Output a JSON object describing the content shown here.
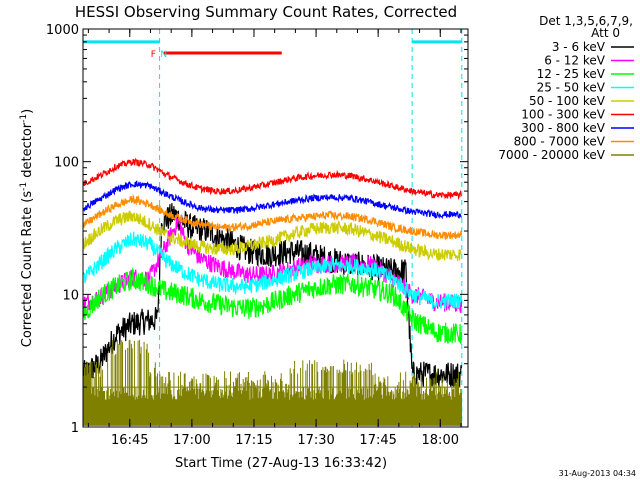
{
  "chart_data": {
    "type": "line",
    "title": "HESSI Observing Summary Count Rates, Corrected",
    "xlabel": "Start Time (27-Aug-13 16:33:42)",
    "ylabel_main": "Corrected Count Rate (s",
    "ylabel_sup1": "-1",
    "ylabel_mid": " detector",
    "ylabel_sup2": "-1",
    "ylabel_end": ")",
    "yscale": "log",
    "ylim": [
      1,
      1000
    ],
    "xlim_minutes": [
      0,
      93
    ],
    "x_ticks": [
      {
        "label": "16:45",
        "minute": 11.3
      },
      {
        "label": "17:00",
        "minute": 26.3
      },
      {
        "label": "17:15",
        "minute": 41.3
      },
      {
        "label": "17:30",
        "minute": 56.3
      },
      {
        "label": "17:45",
        "minute": 71.3
      },
      {
        "label": "18:00",
        "minute": 86.3
      }
    ],
    "y_ticks": [
      {
        "label": "1",
        "value": 1
      },
      {
        "label": "10",
        "value": 10
      },
      {
        "label": "100",
        "value": 100
      },
      {
        "label": "1000",
        "value": 1000
      }
    ],
    "legend_header": [
      "Det 1,3,5,6,7,9,",
      "Att 0"
    ],
    "legend_placement": "right",
    "footer_timestamp": "31-Aug-2013 04:34",
    "night_markers_minutes": [
      18.5,
      79.5,
      91.5
    ],
    "annotations": [
      {
        "text": "F",
        "minute": 17.0,
        "color": "#ff0000"
      },
      {
        "text": "N",
        "minute": 19.5,
        "color": "#00e5ee"
      }
    ],
    "flag_bars": [
      {
        "name": "day",
        "color": "#00e5ee",
        "segments": [
          [
            0,
            18.5
          ],
          [
            79.5,
            91.5
          ]
        ],
        "value": 800
      },
      {
        "name": "flare",
        "color": "#ff0000",
        "segments": [
          [
            19.5,
            48.0
          ]
        ],
        "value": 660
      }
    ],
    "series": [
      {
        "name": "3 - 6 keV",
        "color": "#000000",
        "points": [
          [
            0,
            2.5
          ],
          [
            4,
            3.0
          ],
          [
            8,
            5.0
          ],
          [
            12,
            6.0
          ],
          [
            18,
            6.5
          ],
          [
            19,
            35
          ],
          [
            22,
            40
          ],
          [
            26,
            32
          ],
          [
            30,
            30
          ],
          [
            35,
            25
          ],
          [
            40,
            21
          ],
          [
            45,
            20
          ],
          [
            50,
            21
          ],
          [
            55,
            20
          ],
          [
            60,
            18
          ],
          [
            65,
            17
          ],
          [
            70,
            16
          ],
          [
            74,
            15
          ],
          [
            78,
            15
          ],
          [
            79.5,
            2.5
          ],
          [
            85,
            2.5
          ],
          [
            91.5,
            2.5
          ]
        ]
      },
      {
        "name": "6 - 12 keV",
        "color": "#ff00ff",
        "points": [
          [
            0,
            8.5
          ],
          [
            4,
            9.5
          ],
          [
            8,
            11.5
          ],
          [
            12,
            13.5
          ],
          [
            16,
            13
          ],
          [
            19,
            20
          ],
          [
            23,
            36
          ],
          [
            25,
            24
          ],
          [
            28,
            19
          ],
          [
            32,
            16.5
          ],
          [
            36,
            15
          ],
          [
            40,
            14
          ],
          [
            45,
            14
          ],
          [
            50,
            15.5
          ],
          [
            55,
            17
          ],
          [
            60,
            17
          ],
          [
            65,
            17
          ],
          [
            70,
            16.5
          ],
          [
            75,
            13
          ],
          [
            79.5,
            10
          ],
          [
            85,
            8.8
          ],
          [
            91.5,
            8.5
          ]
        ]
      },
      {
        "name": "12 - 25 keV",
        "color": "#00ff00",
        "points": [
          [
            0,
            7.0
          ],
          [
            4,
            9.5
          ],
          [
            8,
            11.5
          ],
          [
            12,
            13
          ],
          [
            16,
            12
          ],
          [
            20,
            10.5
          ],
          [
            24,
            10
          ],
          [
            28,
            9
          ],
          [
            32,
            8.5
          ],
          [
            36,
            8.0
          ],
          [
            40,
            7.8
          ],
          [
            45,
            8.5
          ],
          [
            50,
            9.8
          ],
          [
            55,
            11
          ],
          [
            60,
            11.8
          ],
          [
            65,
            12
          ],
          [
            70,
            11
          ],
          [
            75,
            10
          ],
          [
            79.5,
            6.5
          ],
          [
            85,
            5.2
          ],
          [
            91.5,
            5.0
          ]
        ]
      },
      {
        "name": "25 - 50 keV",
        "color": "#00ffff",
        "points": [
          [
            0,
            13
          ],
          [
            4,
            17
          ],
          [
            8,
            22
          ],
          [
            12,
            26
          ],
          [
            16,
            24
          ],
          [
            20,
            18
          ],
          [
            24,
            15
          ],
          [
            28,
            13
          ],
          [
            32,
            12
          ],
          [
            36,
            11.5
          ],
          [
            40,
            11.5
          ],
          [
            45,
            12.5
          ],
          [
            50,
            14
          ],
          [
            55,
            15.5
          ],
          [
            60,
            16.5
          ],
          [
            65,
            16.5
          ],
          [
            70,
            15.5
          ],
          [
            75,
            13
          ],
          [
            79.5,
            10
          ],
          [
            85,
            8.8
          ],
          [
            91.5,
            9.0
          ]
        ]
      },
      {
        "name": "50 - 100 keV",
        "color": "#cccc00",
        "points": [
          [
            0,
            24
          ],
          [
            4,
            30
          ],
          [
            8,
            36
          ],
          [
            12,
            39
          ],
          [
            16,
            34
          ],
          [
            20,
            28
          ],
          [
            24,
            25
          ],
          [
            28,
            23
          ],
          [
            32,
            22
          ],
          [
            36,
            22
          ],
          [
            40,
            23
          ],
          [
            45,
            25
          ],
          [
            50,
            28
          ],
          [
            55,
            31
          ],
          [
            60,
            32
          ],
          [
            65,
            31
          ],
          [
            70,
            28
          ],
          [
            75,
            25
          ],
          [
            79.5,
            22
          ],
          [
            85,
            20
          ],
          [
            91.5,
            20
          ]
        ]
      },
      {
        "name": "100 - 300 keV",
        "color": "#ff0000",
        "points": [
          [
            0,
            68
          ],
          [
            4,
            78
          ],
          [
            8,
            92
          ],
          [
            12,
            100
          ],
          [
            16,
            95
          ],
          [
            20,
            80
          ],
          [
            24,
            70
          ],
          [
            28,
            63
          ],
          [
            32,
            60
          ],
          [
            36,
            60
          ],
          [
            40,
            63
          ],
          [
            45,
            68
          ],
          [
            50,
            74
          ],
          [
            55,
            78
          ],
          [
            60,
            80
          ],
          [
            65,
            78
          ],
          [
            70,
            72
          ],
          [
            75,
            65
          ],
          [
            79.5,
            60
          ],
          [
            85,
            56
          ],
          [
            91.5,
            56
          ]
        ]
      },
      {
        "name": "300 - 800 keV",
        "color": "#0000ff",
        "points": [
          [
            0,
            44
          ],
          [
            4,
            52
          ],
          [
            8,
            62
          ],
          [
            12,
            68
          ],
          [
            16,
            66
          ],
          [
            20,
            57
          ],
          [
            24,
            50
          ],
          [
            28,
            45
          ],
          [
            32,
            43
          ],
          [
            36,
            43
          ],
          [
            40,
            44
          ],
          [
            45,
            47
          ],
          [
            50,
            50
          ],
          [
            55,
            53
          ],
          [
            60,
            54
          ],
          [
            65,
            53
          ],
          [
            70,
            49
          ],
          [
            75,
            45
          ],
          [
            79.5,
            42
          ],
          [
            85,
            40
          ],
          [
            91.5,
            40
          ]
        ]
      },
      {
        "name": "800 - 7000 keV",
        "color": "#ff8c00",
        "points": [
          [
            0,
            33
          ],
          [
            4,
            40
          ],
          [
            8,
            47
          ],
          [
            12,
            52
          ],
          [
            16,
            48
          ],
          [
            20,
            41
          ],
          [
            24,
            37
          ],
          [
            28,
            34
          ],
          [
            32,
            32
          ],
          [
            36,
            32
          ],
          [
            40,
            33
          ],
          [
            45,
            35
          ],
          [
            50,
            37
          ],
          [
            55,
            38.5
          ],
          [
            60,
            39.5
          ],
          [
            65,
            38.5
          ],
          [
            70,
            36
          ],
          [
            75,
            32
          ],
          [
            79.5,
            30
          ],
          [
            85,
            28
          ],
          [
            91.5,
            28
          ]
        ]
      },
      {
        "name": "7000 - 20000 keV",
        "color": "#808000",
        "points": []
      }
    ]
  }
}
